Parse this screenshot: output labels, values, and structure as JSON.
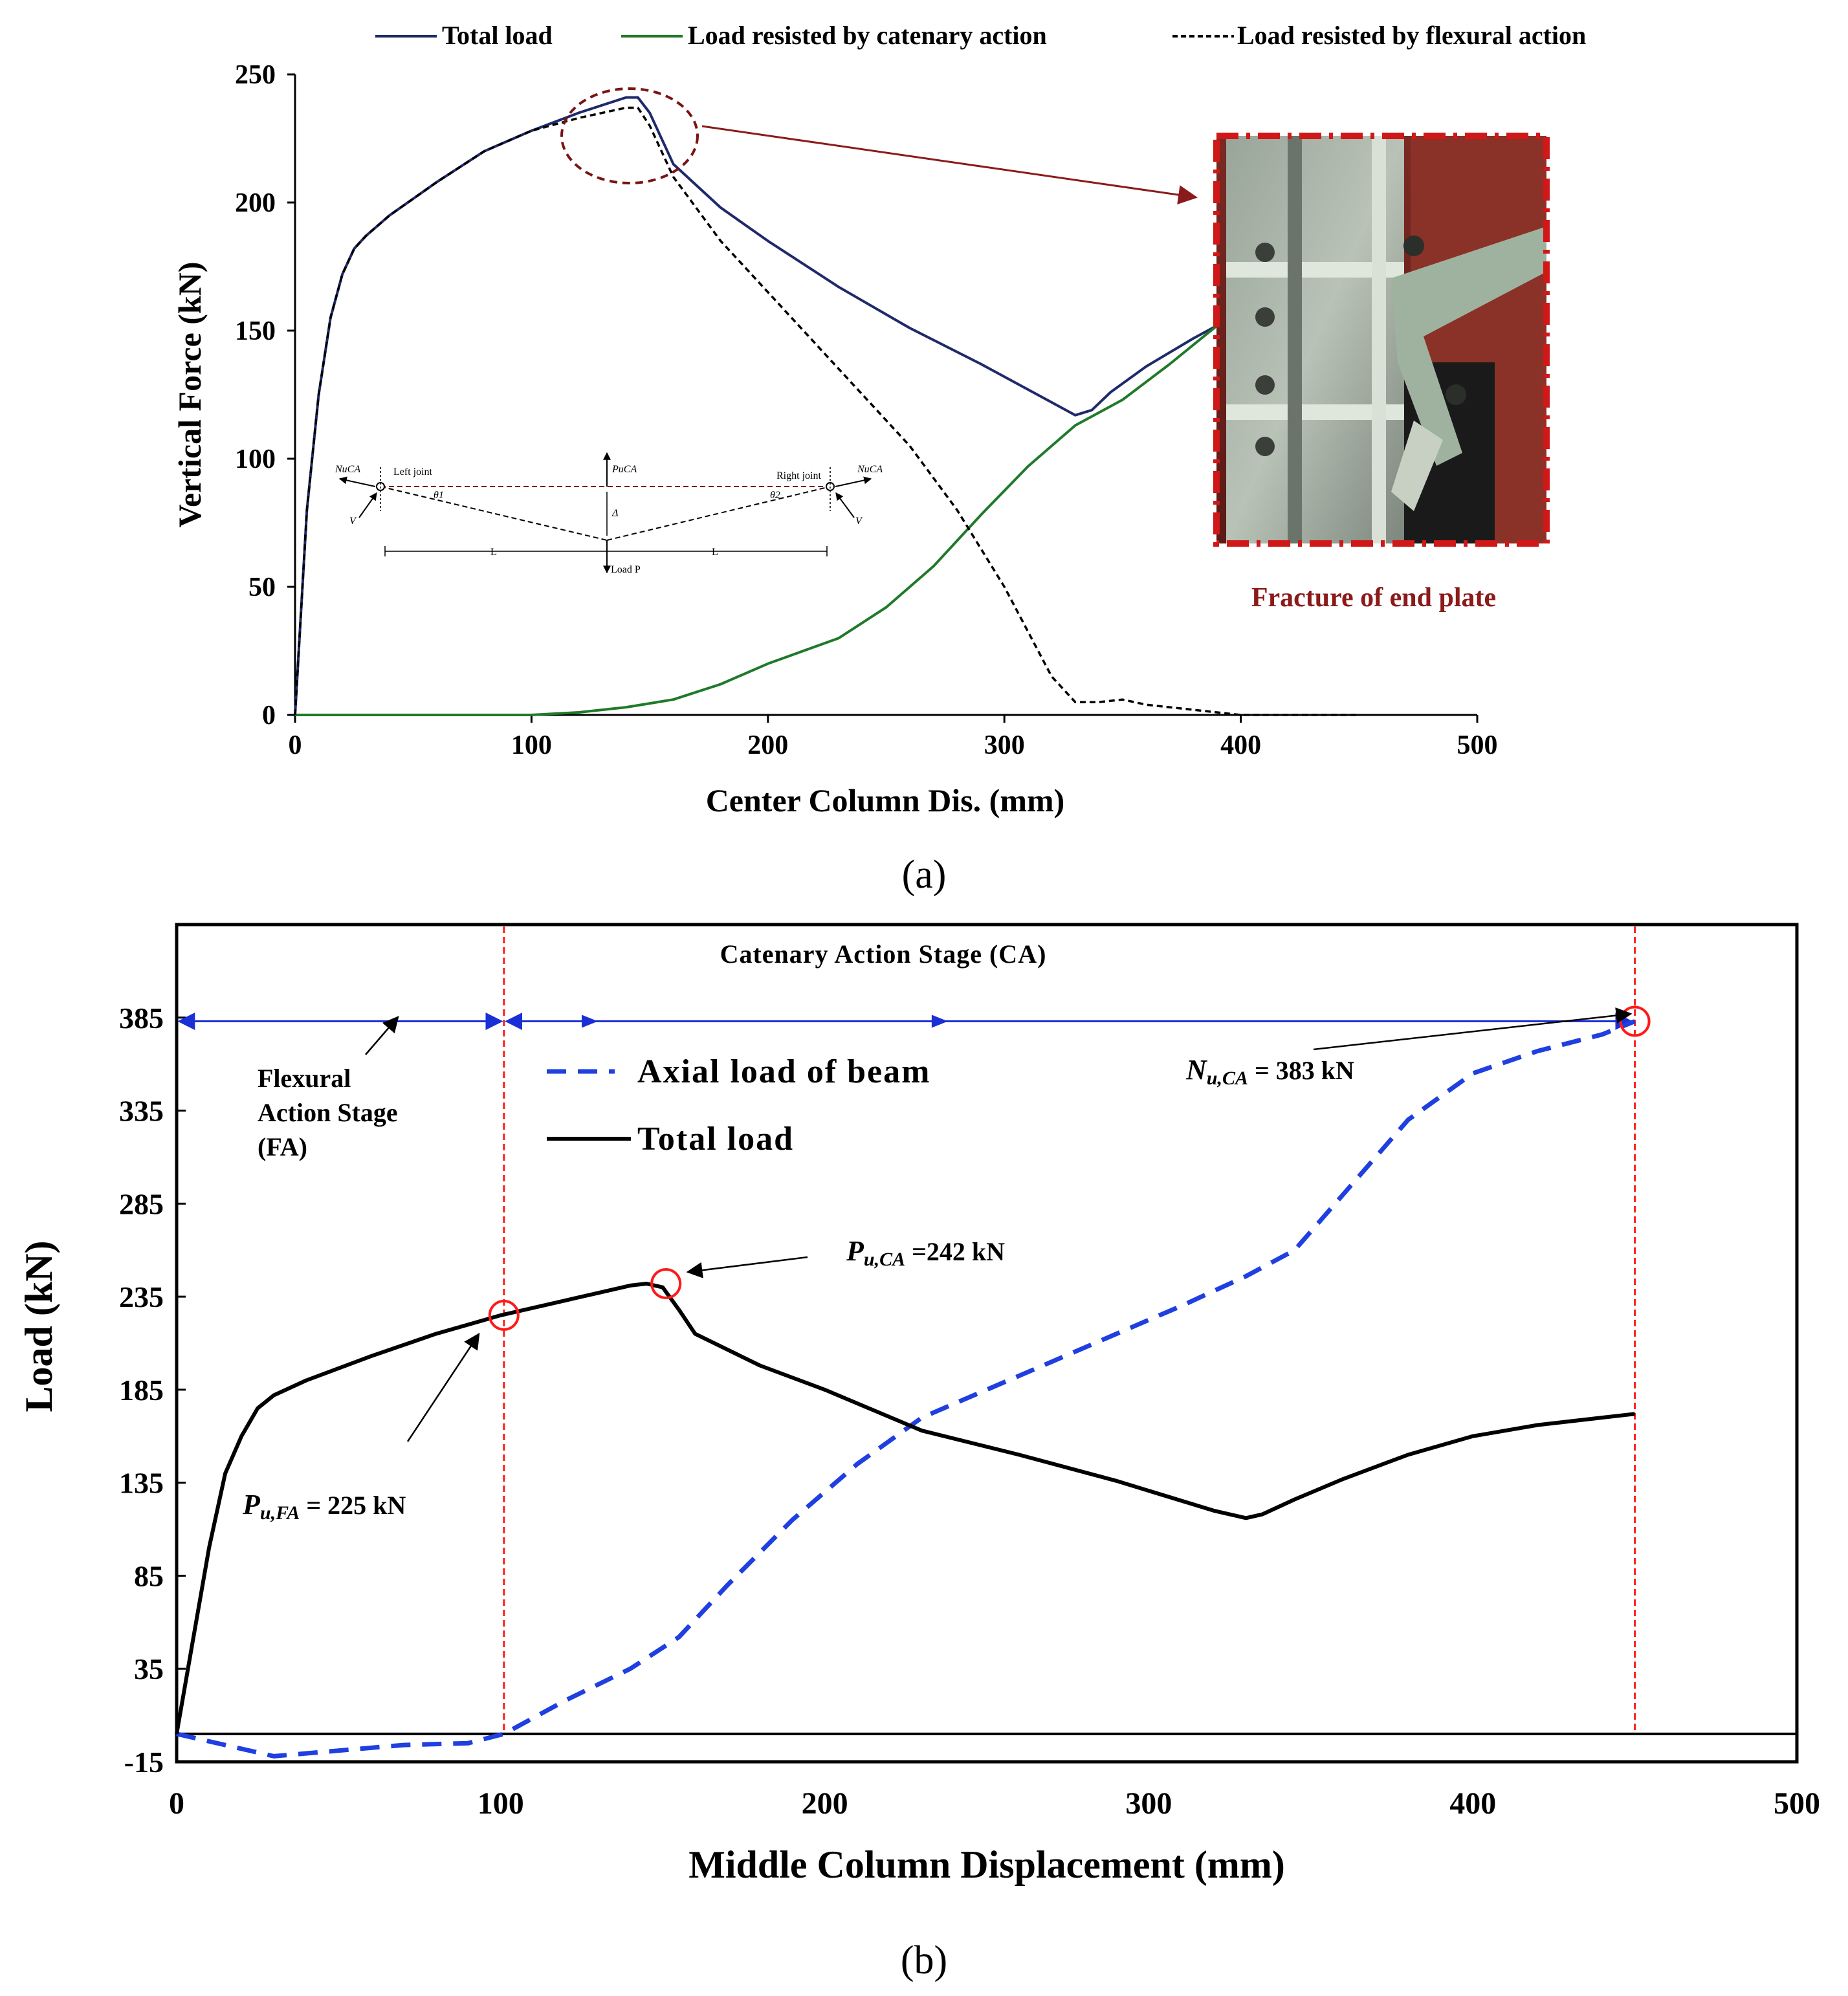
{
  "colors": {
    "total_load_a": "#1f2a6b",
    "catenary": "#1f7a2a",
    "flexural": "#000000",
    "fracture_text": "#8b1a1a",
    "circle_a": "#7a1414",
    "axial_b": "#1f3fe0",
    "total_load_b": "#000000",
    "red_marks": "#ff1a1a",
    "stage_arrow": "#1a2fd6"
  },
  "panel_a": {
    "caption": "(a)",
    "legend": [
      "Total load",
      "Load resisted by catenary action",
      "Load resisted by flexural action"
    ],
    "photo_label": "Fracture of end plate",
    "inset": {
      "left_joint": "Left joint",
      "right_joint": "Right joint",
      "n_left": "NuCA",
      "n_right": "NuCA",
      "p_top": "PuCA",
      "v_left": "V",
      "v_right": "V",
      "theta_left": "θ1",
      "theta_right": "θ2",
      "delta": "Δ",
      "l_left": "L",
      "l_right": "L",
      "load_p": "Load P"
    }
  },
  "panel_b": {
    "caption": "(b)",
    "stage_ca": "Catenary Action Stage (CA)",
    "stage_fa": [
      "Flexural",
      "Action Stage",
      "(FA)"
    ],
    "legend": [
      "Axial load of beam",
      "Total load"
    ],
    "annotations": {
      "nu_ca_sym": "N",
      "nu_ca_sub": "u,CA",
      "nu_ca_val": " = 383 kN",
      "pu_ca_sym": "P",
      "pu_ca_sub": "u,CA",
      "pu_ca_val": " =242 kN",
      "pu_fa_sym": "P",
      "pu_fa_sub": "u,FA",
      "pu_fa_val": " = 225 kN"
    }
  },
  "chart_data": [
    {
      "type": "line",
      "xlabel": "Center Column Dis. (mm)",
      "ylabel": "Vertical Force (kN)",
      "xlim": [
        0,
        500
      ],
      "ylim": [
        0,
        250
      ],
      "xticks": [
        0,
        100,
        200,
        300,
        400,
        500
      ],
      "yticks": [
        0,
        50,
        100,
        150,
        200,
        250
      ],
      "legend_position": "top",
      "grid": false,
      "series": [
        {
          "name": "Total load",
          "x": [
            0,
            5,
            10,
            15,
            20,
            25,
            30,
            40,
            60,
            80,
            100,
            120,
            130,
            140,
            145,
            150,
            160,
            180,
            200,
            230,
            260,
            290,
            320,
            330,
            337,
            345,
            360,
            380,
            400
          ],
          "y": [
            0,
            80,
            125,
            155,
            172,
            182,
            187,
            195,
            208,
            220,
            228,
            235,
            238,
            241,
            241,
            235,
            215,
            198,
            185,
            167,
            151,
            137,
            122,
            117,
            119,
            126,
            136,
            147,
            157
          ]
        },
        {
          "name": "Load resisted by catenary action",
          "x": [
            0,
            100,
            120,
            140,
            160,
            180,
            200,
            230,
            250,
            270,
            290,
            310,
            330,
            350,
            370,
            390,
            400
          ],
          "y": [
            0,
            0,
            1,
            3,
            6,
            12,
            20,
            30,
            42,
            58,
            78,
            97,
            113,
            123,
            137,
            152,
            160
          ]
        },
        {
          "name": "Load resisted by flexural action",
          "x": [
            0,
            5,
            10,
            15,
            20,
            25,
            30,
            40,
            60,
            80,
            100,
            120,
            130,
            140,
            145,
            150,
            160,
            180,
            200,
            230,
            260,
            280,
            300,
            320,
            330,
            340,
            350,
            360,
            380,
            400,
            440,
            450
          ],
          "y": [
            0,
            80,
            125,
            155,
            172,
            182,
            187,
            195,
            208,
            220,
            228,
            233,
            235,
            237,
            237,
            230,
            210,
            185,
            165,
            135,
            105,
            80,
            50,
            15,
            5,
            5,
            6,
            4,
            2,
            0,
            0,
            0
          ]
        }
      ]
    },
    {
      "type": "line",
      "xlabel": "Middle Column Displacement (mm)",
      "ylabel": "Load (kN)",
      "xlim": [
        0,
        500
      ],
      "ylim": [
        -15,
        435
      ],
      "xticks": [
        0,
        100,
        200,
        300,
        400,
        500
      ],
      "yticks": [
        -15,
        35,
        85,
        135,
        185,
        235,
        285,
        335,
        385
      ],
      "legend_position": "top-center",
      "grid": false,
      "reference_lines_x": [
        101,
        450
      ],
      "reference_line_y": 0,
      "stage_arrow_y": 383,
      "series": [
        {
          "name": "Axial load of beam",
          "x": [
            0,
            15,
            30,
            50,
            70,
            90,
            101,
            120,
            140,
            155,
            170,
            190,
            210,
            230,
            250,
            270,
            290,
            310,
            330,
            345,
            360,
            380,
            400,
            420,
            440,
            450
          ],
          "y": [
            0,
            -6,
            -12,
            -9,
            -6,
            -5,
            0,
            18,
            35,
            52,
            80,
            115,
            145,
            170,
            185,
            200,
            215,
            230,
            246,
            260,
            290,
            330,
            355,
            367,
            376,
            383
          ]
        },
        {
          "name": "Total load",
          "x": [
            0,
            5,
            10,
            15,
            20,
            25,
            30,
            40,
            60,
            80,
            100,
            120,
            130,
            140,
            145,
            150,
            155,
            160,
            180,
            200,
            230,
            260,
            290,
            320,
            330,
            335,
            345,
            360,
            380,
            400,
            420,
            440,
            450
          ],
          "y": [
            0,
            50,
            100,
            140,
            160,
            175,
            182,
            190,
            203,
            215,
            225,
            233,
            237,
            241,
            242,
            240,
            228,
            215,
            198,
            185,
            163,
            150,
            136,
            120,
            116,
            118,
            126,
            137,
            150,
            160,
            166,
            170,
            172
          ]
        }
      ],
      "markers": [
        {
          "x": 101,
          "y": 225
        },
        {
          "x": 151,
          "y": 242
        },
        {
          "x": 450,
          "y": 383
        }
      ]
    }
  ]
}
